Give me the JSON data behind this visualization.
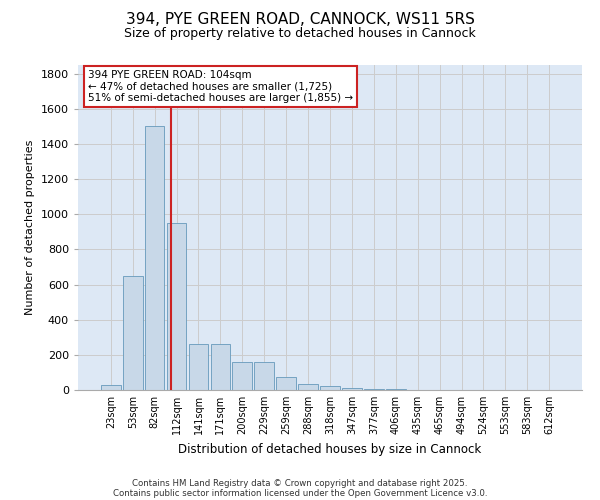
{
  "title": "394, PYE GREEN ROAD, CANNOCK, WS11 5RS",
  "subtitle": "Size of property relative to detached houses in Cannock",
  "xlabel": "Distribution of detached houses by size in Cannock",
  "ylabel": "Number of detached properties",
  "categories": [
    "23sqm",
    "53sqm",
    "82sqm",
    "112sqm",
    "141sqm",
    "171sqm",
    "200sqm",
    "229sqm",
    "259sqm",
    "288sqm",
    "318sqm",
    "347sqm",
    "377sqm",
    "406sqm",
    "435sqm",
    "465sqm",
    "494sqm",
    "524sqm",
    "553sqm",
    "583sqm",
    "612sqm"
  ],
  "values": [
    30,
    650,
    1500,
    950,
    260,
    260,
    160,
    160,
    75,
    35,
    20,
    10,
    5,
    3,
    2,
    2,
    1,
    1,
    0,
    0,
    0
  ],
  "bar_color": "#c8d8e8",
  "bar_edge_color": "#6699bb",
  "grid_color": "#cccccc",
  "background_color": "#dde8f5",
  "vline_x": 2.73,
  "vline_color": "#cc2222",
  "annotation_text": "394 PYE GREEN ROAD: 104sqm\n← 47% of detached houses are smaller (1,725)\n51% of semi-detached houses are larger (1,855) →",
  "annotation_box_facecolor": "#ffffff",
  "annotation_box_edge": "#cc2222",
  "footer1": "Contains HM Land Registry data © Crown copyright and database right 2025.",
  "footer2": "Contains public sector information licensed under the Open Government Licence v3.0.",
  "ylim": [
    0,
    1850
  ],
  "yticks": [
    0,
    200,
    400,
    600,
    800,
    1000,
    1200,
    1400,
    1600,
    1800
  ],
  "title_fontsize": 11,
  "subtitle_fontsize": 9
}
